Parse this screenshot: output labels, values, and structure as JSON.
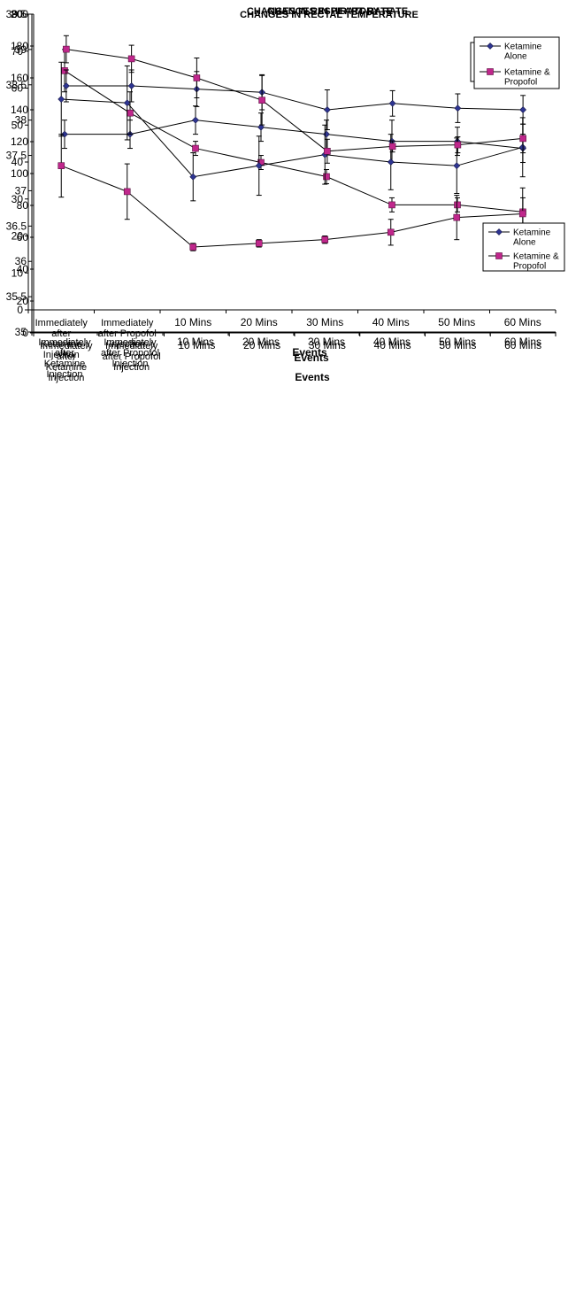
{
  "colors": {
    "ketamine": "#2e3592",
    "propofol": "#c0278c",
    "axis": "#000000"
  },
  "chart_data": [
    {
      "type": "line",
      "title": "CHANGES IN RECTAL TEMPERATURE",
      "xlabel": "Events",
      "ylabel": "",
      "ylim": [
        35,
        39.5
      ],
      "ystep": 0.5,
      "ytick_labels": [
        "35",
        "35.5",
        "36",
        "36.5",
        "37",
        "37.5",
        "38",
        "38.5",
        "39",
        "39.5"
      ],
      "legend_position": "top-right",
      "categories": [
        [
          "Immediately",
          "after",
          "Ketamine",
          "Injection"
        ],
        [
          "Immediately",
          "after Propofol",
          "Injection"
        ],
        [
          "10 Mins"
        ],
        [
          "20 Mins"
        ],
        [
          "30 Mins"
        ],
        [
          "40 Mins"
        ],
        [
          "50 Mins"
        ],
        [
          "60 Mins"
        ]
      ],
      "series": [
        {
          "name": [
            "Ketamine",
            "Alone"
          ],
          "marker": "diamond",
          "color": "#2e3592",
          "values": [
            37.8,
            37.8,
            38.0,
            37.9,
            37.8,
            37.7,
            37.7,
            37.6
          ],
          "error": [
            0.2,
            0.2,
            0.2,
            0.2,
            0.2,
            0.3,
            0.2,
            0.2
          ]
        },
        {
          "name": [
            "Ketamine &",
            "Propofol"
          ],
          "marker": "square",
          "color": "#c0278c",
          "values": [
            38.7,
            38.1,
            37.6,
            37.4,
            37.2,
            36.8,
            36.8,
            36.7
          ],
          "error": [
            0.3,
            0.3,
            0.1,
            0.1,
            0.1,
            0.1,
            0.1,
            0.2
          ]
        }
      ]
    },
    {
      "type": "line",
      "title": "CHANGES IN RESPIRATORY RATE",
      "xlabel": "Events",
      "ylabel": "",
      "ylim": [
        0,
        80
      ],
      "ystep": 10,
      "ytick_labels": [
        "0",
        "10",
        "20",
        "30",
        "40",
        "50",
        "60",
        "70",
        "80"
      ],
      "legend_position": "top-right",
      "categories": [
        [
          "Immediately",
          "after",
          "Ketamine",
          "Injection"
        ],
        [
          "Immediately",
          "after Propofol",
          "Injection"
        ],
        [
          "10 Mins"
        ],
        [
          "20 Mins"
        ],
        [
          "30 Mins"
        ],
        [
          "40 Mins"
        ],
        [
          "50 Mins"
        ],
        [
          "60 Mins"
        ]
      ],
      "series": [
        {
          "name": [
            "Ketamine",
            "Alone"
          ],
          "marker": "diamond",
          "color": "#2e3592",
          "values": [
            57,
            56,
            36,
            39,
            42,
            40,
            39,
            44
          ],
          "error": [
            10,
            10,
            6.5,
            8,
            8,
            7.5,
            7.5,
            8
          ]
        },
        {
          "name": [
            "Ketamine &",
            "Propofol"
          ],
          "marker": "square",
          "color": "#c0278c",
          "values": [
            39,
            32,
            17,
            18,
            19,
            21,
            25,
            26
          ],
          "error": [
            8.5,
            7.5,
            1,
            1,
            1,
            3.5,
            6,
            7
          ]
        }
      ]
    },
    {
      "type": "line",
      "title": "CHANGES IN HEART RATE",
      "xlabel": "Events",
      "ylabel": "",
      "ylim": [
        0,
        200
      ],
      "ystep": 20,
      "ytick_labels": [
        "0",
        "20",
        "40",
        "60",
        "80",
        "100",
        "120",
        "140",
        "160",
        "180",
        "200"
      ],
      "legend_position": "bottom-right",
      "categories": [
        [
          "Immediately",
          "after",
          "Ketamine",
          "Injection"
        ],
        [
          "Immediately",
          "after Propofol",
          "Injection"
        ],
        [
          "10 Mins"
        ],
        [
          "20 Mins"
        ],
        [
          "30 Mins"
        ],
        [
          "40 Mins"
        ],
        [
          "50 Mins"
        ],
        [
          "60 Mins"
        ]
      ],
      "series": [
        {
          "name": [
            "Ketamine",
            "Alone"
          ],
          "marker": "diamond",
          "color": "#2e3592",
          "values": [
            155,
            155,
            153,
            151,
            140,
            144,
            141,
            140
          ],
          "error": [
            10,
            10,
            11,
            11,
            12.5,
            8,
            9,
            9
          ]
        },
        {
          "name": [
            "Ketamine &",
            "Propofol"
          ],
          "marker": "square",
          "color": "#c0278c",
          "values": [
            178,
            172,
            160,
            146,
            114,
            117,
            118,
            122
          ],
          "error": [
            8.5,
            8.5,
            12.5,
            15.5,
            7.5,
            3.5,
            5,
            9
          ]
        }
      ]
    }
  ]
}
